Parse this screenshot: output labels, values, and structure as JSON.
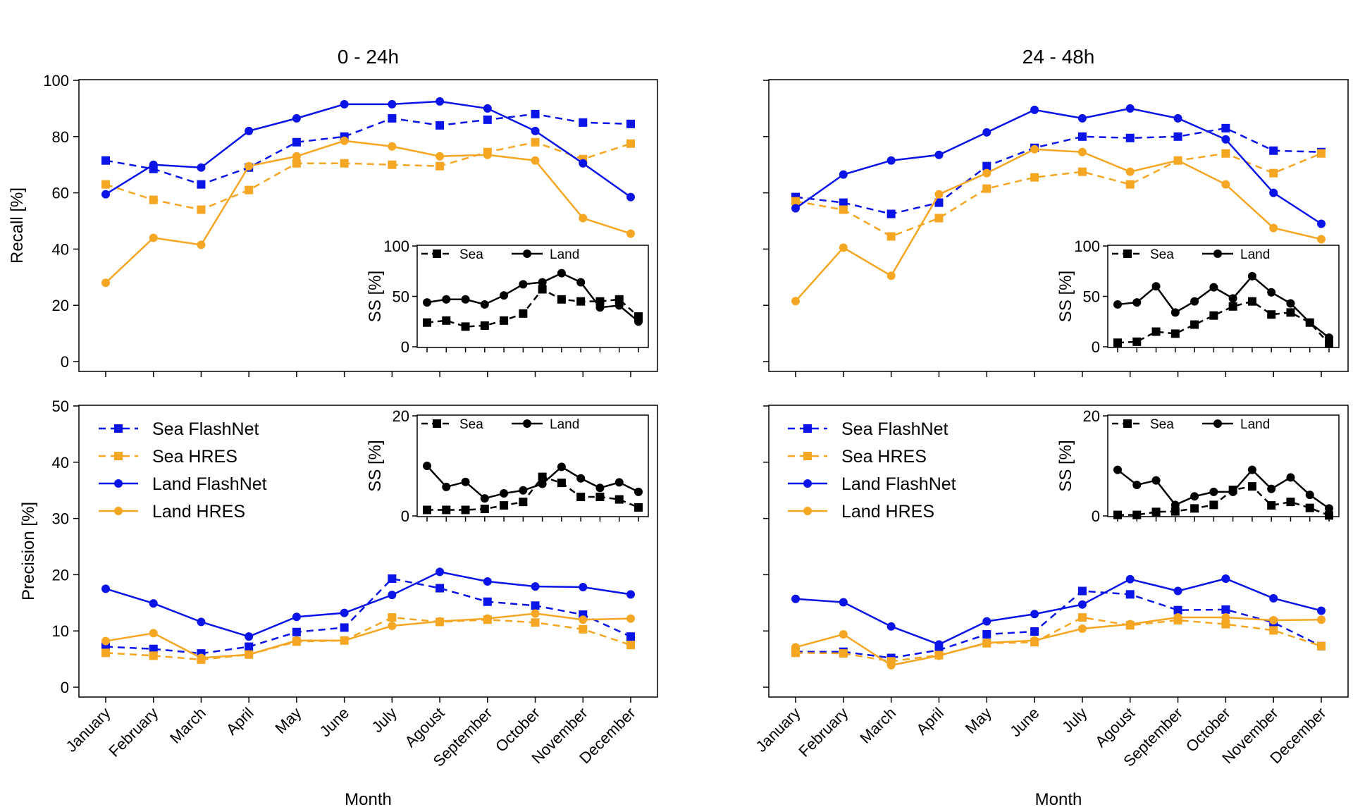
{
  "figure": {
    "x_axis_label": "Month",
    "months": [
      "January",
      "February",
      "March",
      "April",
      "May",
      "June",
      "July",
      "Agoust",
      "September",
      "October",
      "November",
      "December"
    ]
  },
  "colors": {
    "sea_flashnet": "#0a14e6",
    "land_flashnet": "#0a14e6",
    "sea_hres": "#f5a623",
    "land_hres": "#f5a623",
    "ss": "#000000"
  },
  "chart_data": [
    {
      "id": "recall_0_24",
      "type": "line",
      "title": "0 - 24h",
      "ylabel": "Recall [%]",
      "xlabel": "",
      "ylim": [
        0,
        100
      ],
      "yticks": [
        0,
        20,
        40,
        60,
        80,
        100
      ],
      "series": [
        {
          "name": "Sea FlashNet",
          "values": [
            71.5,
            68.5,
            63,
            69,
            78,
            80,
            86.5,
            84,
            86,
            88,
            85,
            84.5
          ]
        },
        {
          "name": "Sea HRES",
          "values": [
            63,
            57.5,
            54,
            61,
            70.5,
            70.5,
            70,
            69.5,
            74.5,
            78,
            72,
            77.5
          ]
        },
        {
          "name": "Land FlashNet",
          "values": [
            59.5,
            70,
            69,
            82,
            86.5,
            91.5,
            91.5,
            92.5,
            90,
            82,
            70.5,
            58.5
          ]
        },
        {
          "name": "Land HRES",
          "values": [
            28,
            44,
            41.5,
            69.5,
            73,
            78.5,
            76.5,
            73,
            73.5,
            71.5,
            51,
            45.5
          ]
        }
      ],
      "inset": {
        "ylabel": "SS [%]",
        "ylim": [
          0,
          100
        ],
        "yticks": [
          0,
          50,
          100
        ],
        "series": [
          {
            "name": "Sea",
            "values": [
              24,
              26,
              20,
              21,
              26,
              33,
              57,
              47,
              45,
              45,
              47,
              30
            ]
          },
          {
            "name": "Land",
            "values": [
              44,
              47,
              47,
              42,
              51,
              62,
              64,
              73,
              64,
              39,
              41,
              25
            ]
          }
        ]
      }
    },
    {
      "id": "recall_24_48",
      "type": "line",
      "title": "24 - 48h",
      "ylabel": "",
      "xlabel": "",
      "ylim": [
        0,
        100
      ],
      "yticks": [
        0,
        20,
        40,
        60,
        80,
        100
      ],
      "series": [
        {
          "name": "Sea FlashNet",
          "values": [
            58.5,
            56.5,
            52.5,
            56.5,
            69.5,
            76,
            80,
            79.5,
            80,
            83,
            75,
            74.5
          ]
        },
        {
          "name": "Sea HRES",
          "values": [
            57,
            54,
            44.5,
            51,
            61.5,
            65.5,
            67.5,
            63,
            71.5,
            74,
            67,
            74
          ]
        },
        {
          "name": "Land FlashNet",
          "values": [
            54.5,
            66.5,
            71.5,
            73.5,
            81.5,
            89.5,
            86.5,
            90,
            86.5,
            79,
            60,
            49
          ]
        },
        {
          "name": "Land HRES",
          "values": [
            21.5,
            40.5,
            30.5,
            59.5,
            67,
            75.5,
            74.5,
            67.5,
            71.5,
            63,
            47.5,
            43.5
          ]
        }
      ],
      "inset": {
        "ylabel": "SS [%]",
        "ylim": [
          0,
          100
        ],
        "yticks": [
          0,
          50,
          100
        ],
        "series": [
          {
            "name": "Sea",
            "values": [
              4,
              5,
              15,
              13,
              22,
              31,
              40,
              45,
              32,
              34,
              24,
              3
            ]
          },
          {
            "name": "Land",
            "values": [
              42,
              44,
              60,
              34,
              45,
              59,
              48,
              70,
              54,
              43,
              24,
              9
            ]
          }
        ]
      }
    },
    {
      "id": "precision_0_24",
      "type": "line",
      "title": "",
      "ylabel": "Precision [%]",
      "xlabel": "Month",
      "ylim": [
        0,
        50
      ],
      "yticks": [
        0,
        10,
        20,
        30,
        40,
        50
      ],
      "series": [
        {
          "name": "Sea FlashNet",
          "values": [
            7.2,
            6.8,
            6,
            7.2,
            9.8,
            10.6,
            19.3,
            17.6,
            15.2,
            14.5,
            12.9,
            9
          ]
        },
        {
          "name": "Sea HRES",
          "values": [
            6.1,
            5.6,
            4.9,
            5.8,
            8.1,
            8.3,
            12.4,
            11.6,
            12,
            11.5,
            10.3,
            7.5
          ]
        },
        {
          "name": "Land FlashNet",
          "values": [
            17.5,
            14.9,
            11.6,
            9,
            12.5,
            13.2,
            16.4,
            20.5,
            18.8,
            17.9,
            17.8,
            16.5
          ]
        },
        {
          "name": "Land HRES",
          "values": [
            8.2,
            9.6,
            5.2,
            5.8,
            8.3,
            8.3,
            10.9,
            11.7,
            12.2,
            13.1,
            12,
            12.2
          ]
        }
      ],
      "legend": [
        "Sea FlashNet",
        "Sea HRES",
        "Land FlashNet",
        "Land HRES"
      ],
      "inset": {
        "ylabel": "SS [%]",
        "ylim": [
          0,
          20
        ],
        "yticks": [
          0,
          20
        ],
        "series": [
          {
            "name": "Sea",
            "values": [
              1.2,
              1.2,
              1.2,
              1.4,
              2.1,
              2.8,
              7.8,
              6.6,
              3.8,
              3.8,
              3.3,
              1.7
            ]
          },
          {
            "name": "Land",
            "values": [
              10,
              5.8,
              6.8,
              3.5,
              4.5,
              5.1,
              6.4,
              9.8,
              7.5,
              5.6,
              6.7,
              4.8
            ]
          }
        ]
      }
    },
    {
      "id": "precision_24_48",
      "type": "line",
      "title": "",
      "ylabel": "",
      "xlabel": "Month",
      "ylim": [
        0,
        50
      ],
      "yticks": [
        0,
        10,
        20,
        30,
        40,
        50
      ],
      "series": [
        {
          "name": "Sea FlashNet",
          "values": [
            6.3,
            6.3,
            5.2,
            6.6,
            9.4,
            9.9,
            17.1,
            16.5,
            13.7,
            13.8,
            11.5,
            7.3
          ]
        },
        {
          "name": "Sea HRES",
          "values": [
            6.1,
            6,
            4.6,
            5.7,
            7.8,
            8,
            12.4,
            11,
            11.9,
            11.2,
            10.1,
            7.3
          ]
        },
        {
          "name": "Land FlashNet",
          "values": [
            15.7,
            15.1,
            10.8,
            7.6,
            11.7,
            13,
            14.7,
            19.2,
            17.1,
            19.3,
            15.8,
            13.6
          ]
        },
        {
          "name": "Land HRES",
          "values": [
            7.1,
            9.4,
            3.9,
            5.6,
            7.9,
            8.3,
            10.4,
            11.2,
            12.4,
            12.4,
            11.9,
            12
          ]
        }
      ],
      "legend": [
        "Sea FlashNet",
        "Sea HRES",
        "Land FlashNet",
        "Land HRES"
      ],
      "inset": {
        "ylabel": "SS [%]",
        "ylim": [
          0,
          20
        ],
        "yticks": [
          0,
          20
        ],
        "series": [
          {
            "name": "Sea",
            "values": [
              0.2,
              0.2,
              0.8,
              0.9,
              1.5,
              2.2,
              5.2,
              5.9,
              2.1,
              2.8,
              1.6,
              0.1
            ]
          },
          {
            "name": "Land",
            "values": [
              9.2,
              6.2,
              7.1,
              2.2,
              3.9,
              4.8,
              4.8,
              9.2,
              5.4,
              7.7,
              4.2,
              1.5
            ]
          }
        ]
      }
    }
  ]
}
